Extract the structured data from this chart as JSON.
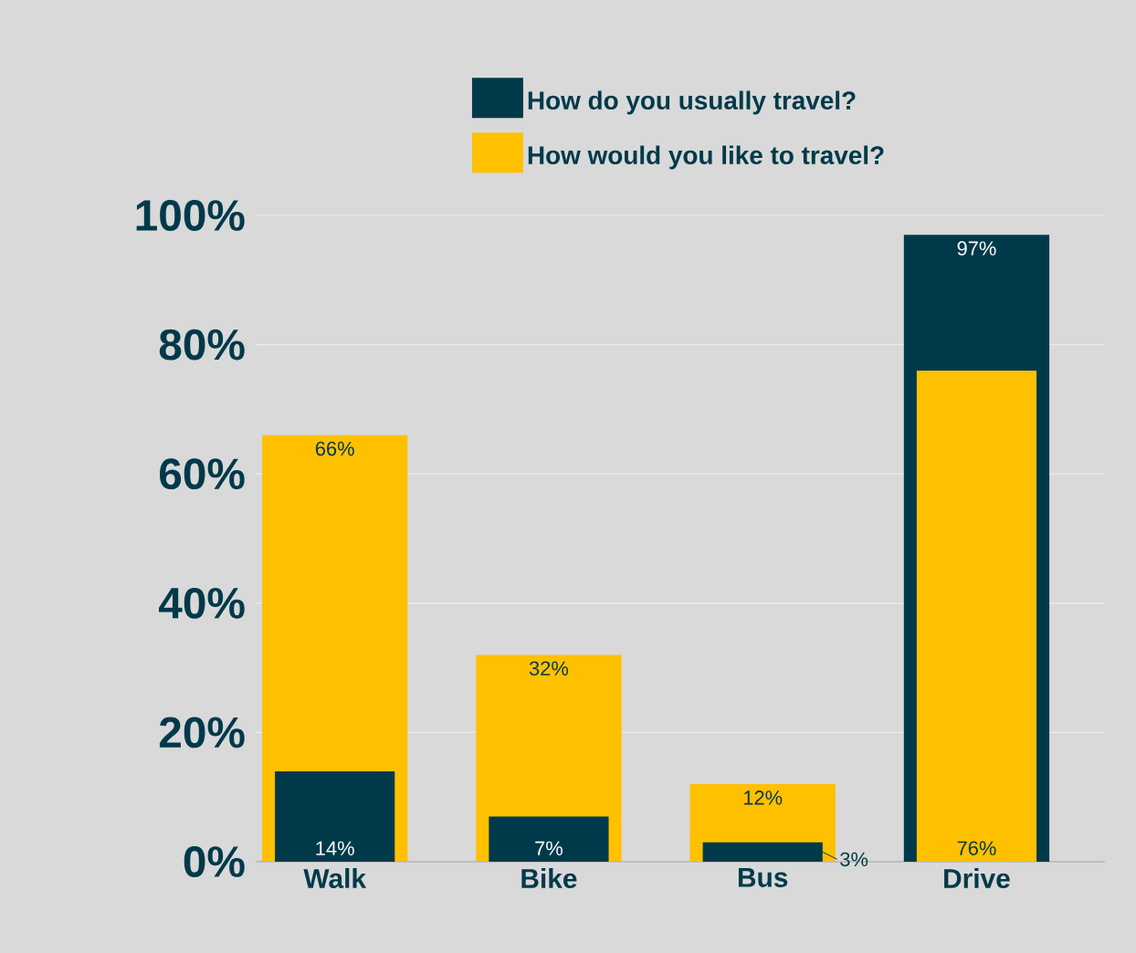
{
  "chart_data": {
    "type": "bar",
    "categories": [
      "Walk",
      "Bike",
      "Bus",
      "Drive"
    ],
    "series": [
      {
        "name": "How do you usually travel?",
        "color": "#003a4a",
        "values": [
          14,
          7,
          3,
          97
        ],
        "value_labels": [
          "14%",
          "7%",
          "3%",
          "97%"
        ]
      },
      {
        "name": "How would you like to travel?",
        "color": "#ffc000",
        "values": [
          66,
          32,
          12,
          76
        ],
        "value_labels": [
          "66%",
          "32%",
          "12%",
          "76%"
        ]
      }
    ],
    "ylim": [
      0,
      100
    ],
    "yticks": [
      {
        "value": 0,
        "label": "0%"
      },
      {
        "value": 20,
        "label": "20%"
      },
      {
        "value": 40,
        "label": "40%"
      },
      {
        "value": 60,
        "label": "60%"
      },
      {
        "value": 80,
        "label": "80%"
      },
      {
        "value": 100,
        "label": "100%"
      }
    ],
    "grid": "y",
    "legend": "top"
  }
}
